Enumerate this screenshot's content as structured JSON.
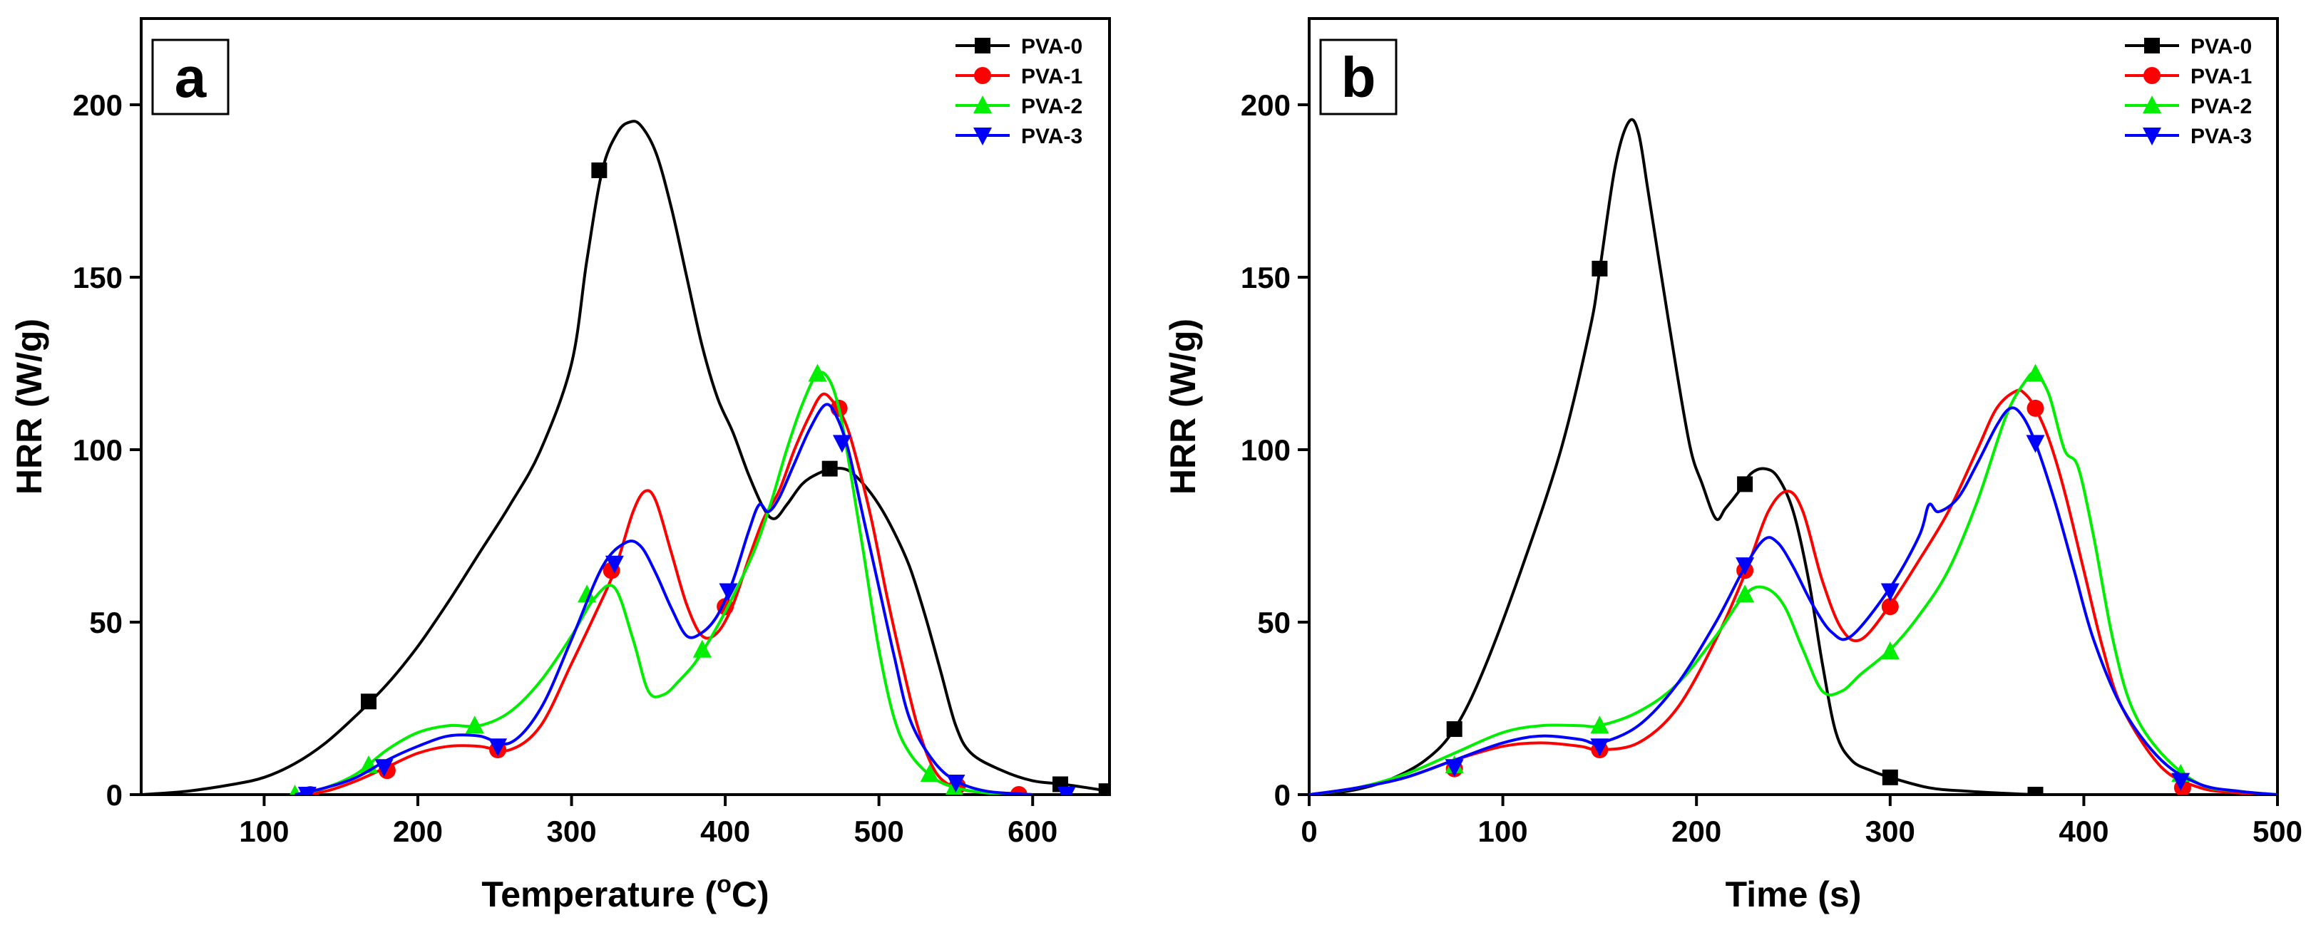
{
  "chart_data": [
    {
      "type": "line",
      "panel_label": "a",
      "xlabel_main": "Temperature (",
      "xlabel_sup": "o",
      "xlabel_end": "C)",
      "ylabel": "HRR (W/g)",
      "xlim": [
        20,
        650
      ],
      "ylim": [
        0,
        225
      ],
      "xticks": [
        100,
        200,
        300,
        400,
        500,
        600
      ],
      "yticks": [
        0,
        50,
        100,
        150,
        200
      ],
      "grid": false,
      "legend_position": "top-right",
      "series": [
        {
          "name": "PVA-0",
          "color": "#000000",
          "marker": "square",
          "x": [
            20,
            50,
            80,
            100,
            120,
            140,
            160,
            180,
            200,
            220,
            240,
            260,
            280,
            300,
            310,
            320,
            330,
            338,
            345,
            355,
            365,
            375,
            385,
            395,
            405,
            415,
            425,
            432,
            440,
            450,
            460,
            470,
            480,
            490,
            500,
            510,
            520,
            530,
            540,
            550,
            560,
            580,
            600,
            620,
            650
          ],
          "y": [
            0,
            1,
            3,
            5,
            9,
            15,
            23,
            32,
            43,
            56,
            70,
            84,
            100,
            125,
            155,
            181,
            192,
            195,
            194,
            186,
            170,
            150,
            130,
            115,
            105,
            93,
            83,
            80,
            84,
            90,
            93,
            94.5,
            94,
            90,
            84,
            76,
            66,
            52,
            36,
            20,
            12,
            7,
            4,
            3,
            1
          ],
          "marker_x": [
            168,
            318,
            468,
            618,
            648
          ],
          "marker_y": [
            27,
            181,
            94.5,
            3,
            1
          ]
        },
        {
          "name": "PVA-1",
          "color": "#ff0000",
          "marker": "circle",
          "x": [
            120,
            140,
            160,
            180,
            200,
            220,
            240,
            260,
            280,
            300,
            315,
            328,
            340,
            348,
            355,
            365,
            375,
            385,
            395,
            405,
            415,
            425,
            435,
            445,
            455,
            463,
            470,
            478,
            485,
            495,
            505,
            515,
            525,
            535,
            545,
            560,
            580,
            600
          ],
          "y": [
            0,
            1,
            4,
            8,
            12,
            14,
            14,
            13,
            20,
            38,
            52,
            65,
            82,
            88,
            85,
            70,
            55,
            46,
            47,
            55,
            68,
            80,
            88,
            100,
            110,
            116,
            114,
            108,
            98,
            80,
            58,
            38,
            20,
            8,
            3,
            1,
            0.5,
            0
          ],
          "marker_x": [
            130,
            180,
            252,
            326,
            400,
            474,
            551,
            591
          ],
          "marker_y": [
            0,
            7,
            13,
            65,
            54.5,
            112,
            2.5,
            0
          ]
        },
        {
          "name": "PVA-2",
          "color": "#00ee00",
          "marker": "triangle-up",
          "x": [
            120,
            140,
            160,
            180,
            200,
            220,
            240,
            260,
            280,
            300,
            315,
            328,
            340,
            350,
            360,
            370,
            380,
            390,
            400,
            410,
            420,
            430,
            440,
            450,
            460,
            468,
            475,
            482,
            490,
            500,
            510,
            520,
            535,
            550,
            570,
            600
          ],
          "y": [
            0,
            2,
            6,
            13,
            18,
            20,
            20,
            24,
            33,
            46,
            57,
            60,
            45,
            30,
            29,
            33,
            38,
            45,
            53,
            62,
            72,
            85,
            100,
            113,
            122,
            120,
            110,
            92,
            70,
            42,
            22,
            12,
            5,
            2,
            0.5,
            0
          ],
          "marker_x": [
            120,
            168,
            237,
            310,
            385,
            460,
            533,
            549
          ],
          "marker_y": [
            0,
            8.5,
            20,
            58,
            42,
            122,
            6,
            2
          ]
        },
        {
          "name": "PVA-3",
          "color": "#0000ff",
          "marker": "triangle-down",
          "x": [
            120,
            140,
            160,
            180,
            200,
            220,
            240,
            260,
            280,
            300,
            320,
            335,
            345,
            355,
            365,
            375,
            385,
            395,
            405,
            415,
            422,
            428,
            435,
            445,
            455,
            465,
            472,
            480,
            490,
            500,
            510,
            520,
            535,
            550,
            570,
            600
          ],
          "y": [
            0,
            2,
            5,
            10,
            14,
            17,
            17,
            15,
            25,
            45,
            66,
            73,
            72,
            64,
            54,
            46,
            47,
            52,
            62,
            76,
            84,
            82,
            86,
            96,
            106,
            113,
            110,
            100,
            80,
            60,
            40,
            22,
            10,
            4,
            1,
            0
          ],
          "marker_x": [
            128,
            178,
            252,
            328,
            402,
            476,
            550,
            622
          ],
          "marker_y": [
            0,
            8,
            14,
            67,
            59,
            102,
            3.5,
            0
          ]
        }
      ]
    },
    {
      "type": "line",
      "panel_label": "b",
      "xlabel_main": "Time (s)",
      "xlabel_sup": "",
      "xlabel_end": "",
      "ylabel": "HRR (W/g)",
      "xlim": [
        0,
        500
      ],
      "ylim": [
        0,
        225
      ],
      "xticks": [
        0,
        100,
        200,
        300,
        400,
        500
      ],
      "yticks": [
        0,
        50,
        100,
        150,
        200
      ],
      "grid": false,
      "legend_position": "top-right",
      "series": [
        {
          "name": "PVA-0",
          "color": "#000000",
          "marker": "square",
          "x": [
            0,
            20,
            40,
            60,
            75,
            90,
            110,
            130,
            145,
            150,
            158,
            165,
            170,
            175,
            182,
            190,
            197,
            203,
            210,
            215,
            222,
            228,
            235,
            242,
            250,
            258,
            265,
            272,
            280,
            290,
            300,
            320,
            340,
            375,
            400,
            450,
            500
          ],
          "y": [
            0,
            1,
            4,
            10,
            19,
            36,
            66,
            100,
            135,
            152,
            182,
            195,
            192,
            175,
            150,
            122,
            100,
            90,
            80,
            83,
            88,
            93,
            94.5,
            92,
            82,
            62,
            38,
            18,
            10,
            7,
            5,
            2,
            1,
            0,
            0,
            0,
            0
          ],
          "marker_x": [
            75,
            150,
            225,
            300,
            375
          ],
          "marker_y": [
            19,
            152.5,
            90,
            5,
            0
          ]
        },
        {
          "name": "PVA-1",
          "color": "#ff0000",
          "marker": "circle",
          "x": [
            0,
            25,
            50,
            75,
            100,
            120,
            140,
            150,
            170,
            190,
            210,
            225,
            237,
            247,
            255,
            265,
            275,
            285,
            300,
            315,
            330,
            345,
            355,
            365,
            370,
            375,
            382,
            390,
            400,
            410,
            420,
            440,
            460,
            480,
            500
          ],
          "y": [
            0,
            2,
            5,
            10,
            14,
            15,
            14,
            13,
            15,
            25,
            45,
            64,
            82,
            88,
            82,
            62,
            48,
            45,
            55,
            68,
            82,
            100,
            112,
            117,
            116,
            112,
            103,
            88,
            65,
            42,
            25,
            8,
            2,
            0.5,
            0
          ],
          "marker_x": [
            75,
            150,
            225,
            300,
            375,
            451
          ],
          "marker_y": [
            7.5,
            13,
            65,
            54.5,
            112,
            2
          ]
        },
        {
          "name": "PVA-2",
          "color": "#00ee00",
          "marker": "triangle-up",
          "x": [
            0,
            25,
            50,
            75,
            100,
            120,
            140,
            150,
            170,
            190,
            210,
            225,
            235,
            245,
            255,
            265,
            275,
            285,
            300,
            315,
            330,
            345,
            360,
            370,
            375,
            382,
            390,
            397,
            405,
            415,
            425,
            440,
            460,
            480,
            500
          ],
          "y": [
            0,
            2,
            6,
            12,
            18,
            20,
            20,
            20,
            24,
            32,
            46,
            58,
            60,
            55,
            42,
            30,
            30,
            35,
            42,
            52,
            65,
            85,
            110,
            120,
            122,
            116,
            100,
            95,
            75,
            45,
            25,
            12,
            3,
            1,
            0
          ],
          "marker_x": [
            75,
            150,
            225,
            300,
            375,
            450
          ],
          "marker_y": [
            8.5,
            20,
            58,
            41.5,
            122,
            6
          ]
        },
        {
          "name": "PVA-3",
          "color": "#0000ff",
          "marker": "triangle-down",
          "x": [
            0,
            25,
            50,
            75,
            100,
            120,
            140,
            150,
            170,
            190,
            210,
            225,
            235,
            242,
            250,
            260,
            270,
            280,
            300,
            315,
            320,
            325,
            335,
            345,
            355,
            362,
            368,
            375,
            385,
            395,
            405,
            420,
            440,
            460,
            480,
            500
          ],
          "y": [
            0,
            2,
            5,
            10,
            15,
            17,
            16,
            15,
            20,
            32,
            50,
            66,
            74,
            73,
            66,
            55,
            47,
            46,
            60,
            75,
            84,
            82,
            86,
            96,
            107,
            112,
            110,
            102,
            85,
            65,
            45,
            25,
            10,
            3,
            1,
            0
          ],
          "marker_x": [
            75,
            150,
            225,
            300,
            375,
            450
          ],
          "marker_y": [
            8,
            14,
            66.5,
            59,
            102,
            4
          ]
        }
      ]
    }
  ]
}
